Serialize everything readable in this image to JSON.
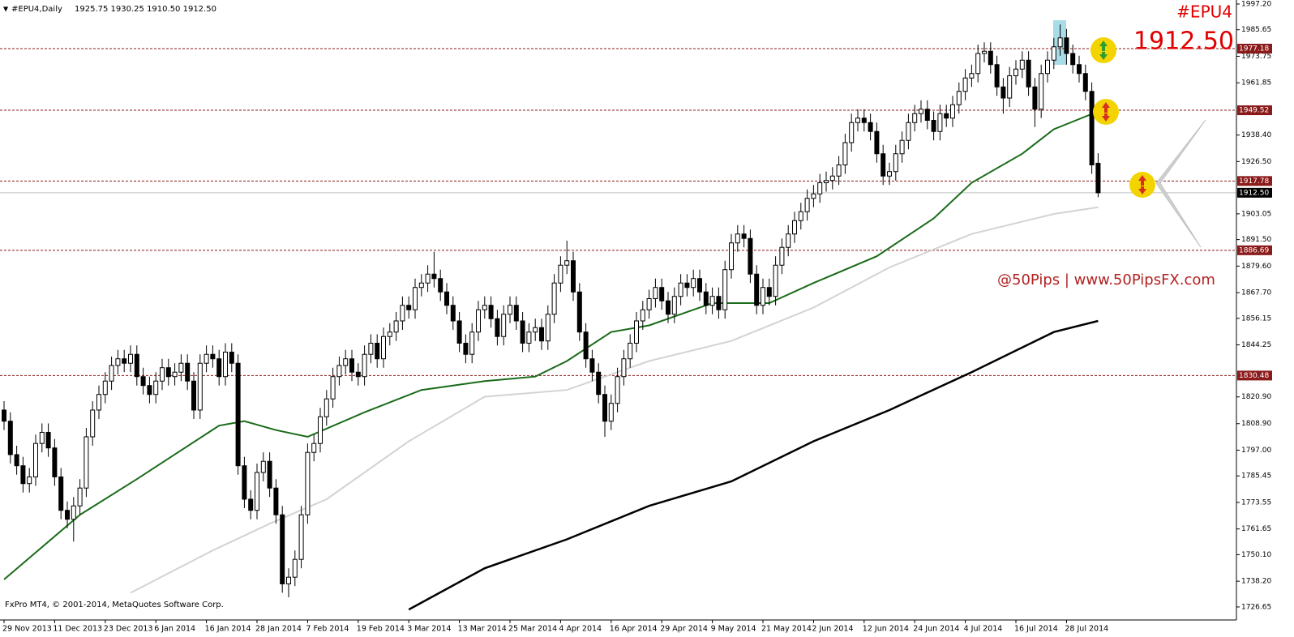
{
  "chart_data": {
    "type": "candlestick",
    "title": "#EPU4,Daily",
    "header_label": "1925.75 1930.25 1910.50 1912.50",
    "symbol": "#EPU4",
    "current_price": {
      "value": 1912.5,
      "label": "1912.50"
    },
    "watermark": "@50Pips | www.50PipsFX.com",
    "copyright": "FxPro MT4, © 2001-2014, MetaQuotes Software Corp.",
    "ylim": [
      1720.8,
      1999.0
    ],
    "yticks": [
      {
        "value": 1997.2,
        "label": "1997.20"
      },
      1985.65,
      1973.75,
      1961.85,
      {
        "value": 1938.4,
        "label": "1938.40"
      },
      {
        "value": 1926.5,
        "label": "1926.50"
      },
      1903.05,
      {
        "value": 1891.5,
        "label": "1891.50"
      },
      {
        "value": 1879.6,
        "label": "1879.60"
      },
      {
        "value": 1867.7,
        "label": "1867.70"
      },
      1856.15,
      1844.25,
      {
        "value": 1820.9,
        "label": "1820.90"
      },
      {
        "value": 1808.9,
        "label": "1808.90"
      },
      {
        "value": 1797,
        "label": "1797.00"
      },
      1785.45,
      1773.55,
      1761.65,
      {
        "value": 1750.1,
        "label": "1750.10"
      },
      {
        "value": 1738.2,
        "label": "1738.20"
      },
      1726.65
    ],
    "xticks": [
      {
        "value": 0,
        "label": "29 Nov 2013"
      },
      {
        "value": 8,
        "label": "11 Dec 2013"
      },
      {
        "value": 16,
        "label": "23 Dec 2013"
      },
      {
        "value": 24,
        "label": "6 Jan 2014"
      },
      {
        "value": 32,
        "label": "16 Jan 2014"
      },
      {
        "value": 40,
        "label": "28 Jan 2014"
      },
      {
        "value": 48,
        "label": "7 Feb 2014"
      },
      {
        "value": 56,
        "label": "19 Feb 2014"
      },
      {
        "value": 64,
        "label": "3 Mar 2014"
      },
      {
        "value": 72,
        "label": "13 Mar 2014"
      },
      {
        "value": 80,
        "label": "25 Mar 2014"
      },
      {
        "value": 88,
        "label": "4 Apr 2014"
      },
      {
        "value": 96,
        "label": "16 Apr 2014"
      },
      {
        "value": 104,
        "label": "29 Apr 2014"
      },
      {
        "value": 112,
        "label": "9 May 2014"
      },
      {
        "value": 120,
        "label": "21 May 2014"
      },
      {
        "value": 128,
        "label": "2 Jun 2014"
      },
      {
        "value": 136,
        "label": "12 Jun 2014"
      },
      {
        "value": 144,
        "label": "24 Jun 2014"
      },
      {
        "value": 152,
        "label": "4 Jul 2014"
      },
      {
        "value": 160,
        "label": "16 Jul 2014"
      },
      {
        "value": 168,
        "label": "28 Jul 2014"
      }
    ],
    "levels": [
      1977.18,
      1949.52,
      1917.78,
      1886.69,
      1830.48
    ],
    "level_color": "#8b1a1a",
    "up_color": "#ffffff",
    "down_color": "#000000",
    "ohlc": {
      "open": [
        1815,
        1810,
        1795,
        1790,
        1782,
        1785,
        1800,
        1805,
        1798,
        1785,
        1770,
        1766,
        1772,
        1780,
        1803,
        1815,
        1822,
        1828,
        1835,
        1838,
        1836,
        1840,
        1830,
        1826,
        1822,
        1828,
        1834,
        1830,
        1832,
        1836,
        1828,
        1815,
        1836,
        1840,
        1838,
        1830,
        1841,
        1836,
        1790,
        1775,
        1770,
        1787,
        1792,
        1780,
        1768,
        1737,
        1740,
        1748,
        1768,
        1796,
        1800,
        1812,
        1820,
        1830,
        1835,
        1838,
        1832,
        1830,
        1840,
        1845,
        1838,
        1848,
        1850,
        1855,
        1862,
        1860,
        1870,
        1872,
        1876,
        1874,
        1868,
        1862,
        1855,
        1845,
        1840,
        1850,
        1860,
        1862,
        1856,
        1848,
        1858,
        1862,
        1855,
        1845,
        1850,
        1852,
        1846,
        1858,
        1872,
        1880,
        1882,
        1868,
        1850,
        1838,
        1832,
        1822,
        1810,
        1818,
        1830,
        1838,
        1845,
        1855,
        1860,
        1865,
        1870,
        1864,
        1858,
        1866,
        1872,
        1870,
        1874,
        1868,
        1862,
        1866,
        1860,
        1878,
        1890,
        1894,
        1892,
        1876,
        1862,
        1870,
        1866,
        1880,
        1888,
        1894,
        1900,
        1904,
        1910,
        1912,
        1917,
        1918,
        1920,
        1925,
        1935,
        1944,
        1946,
        1944,
        1940,
        1930,
        1920,
        1922,
        1930,
        1936,
        1944,
        1948,
        1950,
        1945,
        1940,
        1948,
        1946,
        1952,
        1958,
        1964,
        1966,
        1975,
        1976,
        1970,
        1960,
        1955,
        1965,
        1968,
        1972,
        1960,
        1950,
        1966,
        1972,
        1978,
        1982,
        1975,
        1970,
        1966,
        1958,
        1925.75
      ],
      "high": [
        1819,
        1814,
        1799,
        1794,
        1789,
        1804,
        1809,
        1809,
        1802,
        1789,
        1774,
        1776,
        1784,
        1807,
        1819,
        1826,
        1832,
        1839,
        1842,
        1842,
        1844,
        1844,
        1834,
        1830,
        1832,
        1838,
        1838,
        1836,
        1840,
        1840,
        1832,
        1840,
        1844,
        1844,
        1842,
        1845,
        1845,
        1840,
        1794,
        1779,
        1791,
        1796,
        1796,
        1784,
        1772,
        1744,
        1752,
        1772,
        1800,
        1804,
        1816,
        1824,
        1834,
        1839,
        1842,
        1842,
        1836,
        1844,
        1849,
        1849,
        1852,
        1854,
        1859,
        1866,
        1866,
        1874,
        1876,
        1880,
        1886,
        1878,
        1872,
        1866,
        1859,
        1849,
        1854,
        1864,
        1866,
        1866,
        1860,
        1862,
        1866,
        1866,
        1859,
        1854,
        1856,
        1856,
        1862,
        1876,
        1884,
        1891,
        1886,
        1872,
        1854,
        1842,
        1836,
        1826,
        1822,
        1834,
        1842,
        1849,
        1859,
        1864,
        1869,
        1874,
        1874,
        1868,
        1870,
        1876,
        1876,
        1878,
        1878,
        1872,
        1870,
        1870,
        1882,
        1894,
        1898,
        1898,
        1896,
        1880,
        1874,
        1874,
        1884,
        1892,
        1898,
        1904,
        1908,
        1914,
        1916,
        1921,
        1922,
        1924,
        1929,
        1939,
        1948,
        1950,
        1950,
        1948,
        1944,
        1934,
        1926,
        1934,
        1940,
        1948,
        1952,
        1954,
        1954,
        1949,
        1952,
        1952,
        1956,
        1962,
        1968,
        1970,
        1979,
        1980,
        1980,
        1974,
        1964,
        1969,
        1972,
        1976,
        1976,
        1964,
        1970,
        1976,
        1982,
        1988,
        1986,
        1979,
        1974,
        1970,
        1962,
        1930.25
      ],
      "low": [
        1806,
        1791,
        1786,
        1778,
        1778,
        1781,
        1796,
        1794,
        1781,
        1766,
        1762,
        1756,
        1768,
        1776,
        1799,
        1811,
        1818,
        1824,
        1831,
        1832,
        1832,
        1826,
        1822,
        1818,
        1818,
        1824,
        1826,
        1826,
        1828,
        1824,
        1811,
        1811,
        1832,
        1834,
        1826,
        1826,
        1832,
        1786,
        1771,
        1766,
        1766,
        1783,
        1776,
        1764,
        1733,
        1731,
        1736,
        1744,
        1764,
        1792,
        1796,
        1808,
        1816,
        1826,
        1831,
        1828,
        1826,
        1826,
        1836,
        1834,
        1834,
        1844,
        1846,
        1851,
        1856,
        1856,
        1866,
        1868,
        1870,
        1864,
        1858,
        1851,
        1841,
        1836,
        1836,
        1846,
        1856,
        1852,
        1844,
        1844,
        1854,
        1851,
        1841,
        1841,
        1846,
        1842,
        1842,
        1854,
        1868,
        1876,
        1864,
        1846,
        1834,
        1828,
        1818,
        1803,
        1806,
        1814,
        1826,
        1834,
        1841,
        1851,
        1856,
        1861,
        1860,
        1854,
        1854,
        1862,
        1866,
        1866,
        1864,
        1858,
        1858,
        1856,
        1856,
        1874,
        1886,
        1888,
        1872,
        1858,
        1858,
        1862,
        1862,
        1876,
        1884,
        1890,
        1896,
        1900,
        1906,
        1908,
        1913,
        1914,
        1916,
        1921,
        1931,
        1940,
        1940,
        1936,
        1926,
        1916,
        1916,
        1918,
        1926,
        1932,
        1940,
        1944,
        1941,
        1936,
        1936,
        1942,
        1942,
        1948,
        1954,
        1960,
        1962,
        1971,
        1966,
        1956,
        1948,
        1951,
        1961,
        1964,
        1956,
        1942,
        1946,
        1962,
        1968,
        1974,
        1970,
        1966,
        1962,
        1954,
        1921,
        1910.5
      ],
      "close": [
        1810,
        1795,
        1790,
        1782,
        1785,
        1800,
        1805,
        1798,
        1785,
        1770,
        1766,
        1772,
        1780,
        1803,
        1815,
        1822,
        1828,
        1835,
        1838,
        1836,
        1840,
        1830,
        1826,
        1822,
        1828,
        1834,
        1830,
        1832,
        1836,
        1828,
        1815,
        1836,
        1840,
        1838,
        1830,
        1841,
        1836,
        1790,
        1775,
        1770,
        1787,
        1792,
        1780,
        1768,
        1737,
        1740,
        1748,
        1768,
        1796,
        1800,
        1812,
        1820,
        1830,
        1835,
        1838,
        1832,
        1830,
        1840,
        1845,
        1838,
        1848,
        1850,
        1855,
        1862,
        1860,
        1870,
        1872,
        1876,
        1874,
        1868,
        1862,
        1855,
        1845,
        1840,
        1850,
        1860,
        1862,
        1856,
        1848,
        1858,
        1862,
        1855,
        1845,
        1850,
        1852,
        1846,
        1858,
        1872,
        1880,
        1882,
        1868,
        1850,
        1838,
        1832,
        1822,
        1810,
        1818,
        1830,
        1838,
        1845,
        1855,
        1860,
        1865,
        1870,
        1864,
        1858,
        1866,
        1872,
        1870,
        1874,
        1868,
        1862,
        1866,
        1860,
        1878,
        1890,
        1894,
        1892,
        1876,
        1862,
        1870,
        1866,
        1880,
        1888,
        1894,
        1900,
        1904,
        1910,
        1912,
        1917,
        1918,
        1920,
        1925,
        1935,
        1944,
        1946,
        1944,
        1940,
        1930,
        1920,
        1922,
        1930,
        1936,
        1944,
        1948,
        1950,
        1945,
        1940,
        1948,
        1946,
        1952,
        1958,
        1964,
        1966,
        1975,
        1976,
        1970,
        1960,
        1955,
        1965,
        1968,
        1972,
        1960,
        1950,
        1966,
        1972,
        1978,
        1982,
        1975,
        1970,
        1966,
        1958,
        1925,
        1912.5
      ]
    },
    "moving_averages": [
      {
        "color": "#1a6b1a",
        "x": [
          0,
          12,
          21,
          34,
          38,
          43,
          48,
          57,
          66,
          76,
          84,
          89,
          96,
          102,
          112,
          121,
          128,
          138,
          147,
          153,
          161,
          166,
          173
        ],
        "values": [
          1739,
          1768,
          1784,
          1808,
          1810,
          1806,
          1803,
          1814,
          1824,
          1828,
          1830,
          1837,
          1850,
          1853,
          1863,
          1863,
          1872,
          1884,
          1901,
          1917,
          1930,
          1941,
          1949
        ]
      },
      {
        "color": "#d3d3d3",
        "x": [
          20,
          33,
          42,
          51,
          64,
          76,
          89,
          102,
          115,
          128,
          140,
          153,
          166,
          173
        ],
        "values": [
          1733,
          1752,
          1764,
          1775,
          1801,
          1821,
          1824,
          1837,
          1846,
          1861,
          1879,
          1894,
          1903,
          1906
        ]
      },
      {
        "color": "#000000",
        "x": [
          64,
          76,
          89,
          102,
          115,
          128,
          140,
          153,
          166,
          173
        ],
        "values": [
          1725.5,
          1744,
          1757,
          1772,
          1783,
          1801,
          1815,
          1832,
          1850,
          1855
        ]
      }
    ]
  }
}
